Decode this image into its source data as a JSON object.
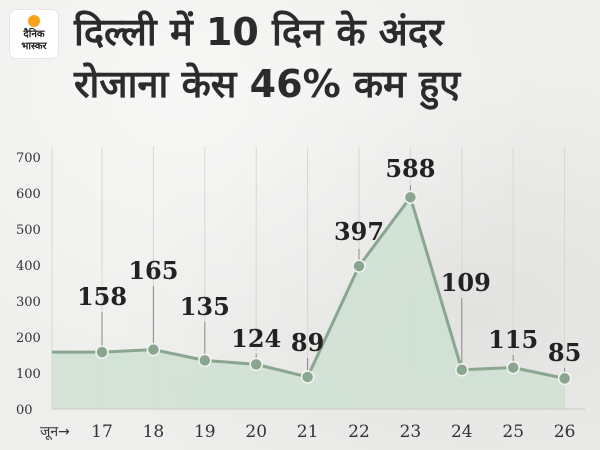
{
  "brand": {
    "line1": "दैनिक",
    "line2": "भास्कर"
  },
  "title_line1": "दिल्ली में 10 दिन के अंदर",
  "title_line2": "रोजाना केस 46% कम हुए",
  "colors": {
    "line": "#8aa68f",
    "fill": "#cfe0d2",
    "marker": "#8aa68f",
    "text": "#222222"
  },
  "chart_data": {
    "type": "area",
    "x_prefix": "जून→",
    "x": [
      "17",
      "18",
      "19",
      "20",
      "21",
      "22",
      "23",
      "24",
      "25",
      "26"
    ],
    "values": [
      158,
      165,
      135,
      124,
      89,
      397,
      588,
      109,
      115,
      85
    ],
    "data_labels": [
      "158",
      "165",
      "135",
      "124",
      "89",
      "397",
      "588",
      "109",
      "115",
      "85"
    ],
    "y_ticks": [
      "700",
      "600",
      "500",
      "400",
      "300",
      "200",
      "100",
      "00"
    ],
    "ylim": [
      0,
      700
    ],
    "grid": true
  }
}
